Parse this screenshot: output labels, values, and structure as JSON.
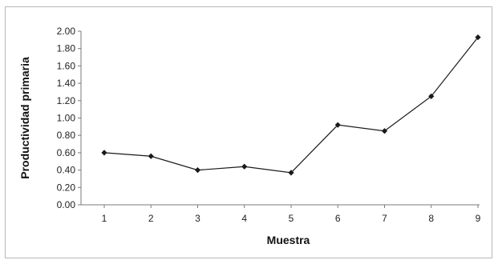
{
  "chart_data": {
    "type": "line",
    "xlabel": "Muestra",
    "ylabel": "Productividad primaria",
    "x": [
      1,
      2,
      3,
      4,
      5,
      6,
      7,
      8,
      9
    ],
    "x_tick_labels": [
      "1",
      "2",
      "3",
      "4",
      "5",
      "6",
      "7",
      "8",
      "9"
    ],
    "series": [
      {
        "values": [
          0.6,
          0.56,
          0.4,
          0.44,
          0.37,
          0.92,
          0.85,
          1.25,
          1.93
        ]
      }
    ],
    "ylim": [
      0,
      2
    ],
    "y_ticks": [
      0,
      0.2,
      0.4,
      0.6,
      0.8,
      1.0,
      1.2,
      1.4,
      1.6,
      1.8,
      2.0
    ],
    "y_tick_labels": [
      "0.00",
      "0.20",
      "0.40",
      "0.60",
      "0.80",
      "1.00",
      "1.20",
      "1.40",
      "1.60",
      "1.80",
      "2.00"
    ],
    "grid": false,
    "legend": "none",
    "marker": "diamond",
    "line_color": "#1a1a1a",
    "axis_color": "#7a7a7a"
  }
}
